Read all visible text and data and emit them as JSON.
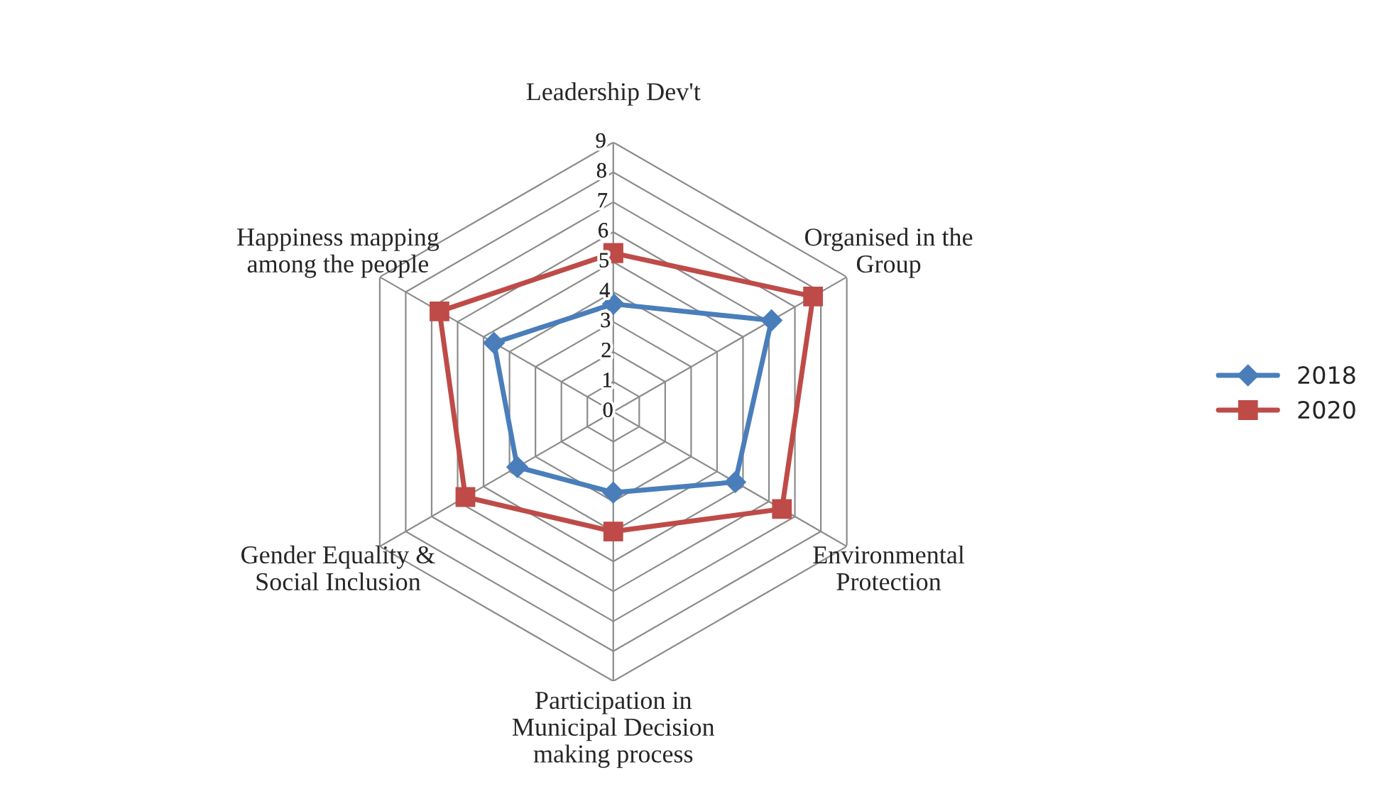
{
  "chart_data": {
    "type": "radar",
    "categories": [
      "Leadership Dev't",
      "Organised in the\nGroup",
      "Environmental\nProtection",
      "Participation in\nMunicipal Decision\nmaking process",
      "Gender Equality &\nSocial Inclusion",
      "Happiness mapping\namong the people"
    ],
    "series": [
      {
        "name": "2018",
        "color": "#4a7ebb",
        "marker": "diamond",
        "values": [
          3.6,
          6.1,
          4.7,
          2.7,
          3.7,
          4.6
        ]
      },
      {
        "name": "2020",
        "color": "#be4b48",
        "marker": "square",
        "values": [
          5.3,
          7.7,
          6.5,
          4.0,
          5.7,
          6.7
        ]
      }
    ],
    "ylim": [
      0,
      9
    ],
    "yticks": [
      0,
      1,
      2,
      3,
      4,
      5,
      6,
      7,
      8,
      9
    ],
    "grid": true,
    "legend": "right"
  }
}
